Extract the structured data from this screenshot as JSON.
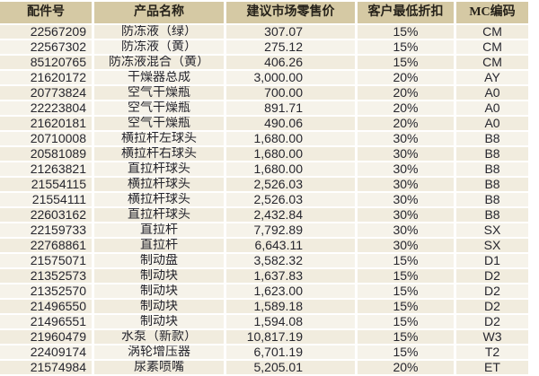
{
  "table": {
    "columns": [
      {
        "key": "part_number",
        "label": "配件号"
      },
      {
        "key": "product_name",
        "label": "产品名称"
      },
      {
        "key": "suggested_retail_price",
        "label": "建议市场零售价"
      },
      {
        "key": "customer_min_discount",
        "label": "客户最低折扣"
      },
      {
        "key": "mc_code",
        "label": "MC编码"
      }
    ],
    "rows": [
      [
        "22567209",
        "防冻液（绿）",
        "307.07",
        "15%",
        "CM"
      ],
      [
        "22567302",
        "防冻液（黄）",
        "275.12",
        "15%",
        "CM"
      ],
      [
        "85120765",
        "防冻液混合（黄）",
        "406.26",
        "15%",
        "CM"
      ],
      [
        "21620172",
        "干燥器总成",
        "3,000.00",
        "20%",
        "AY"
      ],
      [
        "20773824",
        "空气干燥瓶",
        "700.00",
        "20%",
        "A0"
      ],
      [
        "22223804",
        "空气干燥瓶",
        "891.71",
        "20%",
        "A0"
      ],
      [
        "21620181",
        "空气干燥瓶",
        "490.06",
        "20%",
        "A0"
      ],
      [
        "20710008",
        "横拉杆左球头",
        "1,680.00",
        "30%",
        "B8"
      ],
      [
        "20581089",
        "横拉杆右球头",
        "1,680.00",
        "30%",
        "B8"
      ],
      [
        "21263821",
        "直拉杆球头",
        "1,680.00",
        "30%",
        "B8"
      ],
      [
        "21554115",
        "横拉杆球头",
        "2,526.03",
        "30%",
        "B8"
      ],
      [
        "21554111",
        "横拉杆球头",
        "2,526.03",
        "30%",
        "B8"
      ],
      [
        "22603162",
        "直拉杆球头",
        "2,432.84",
        "30%",
        "B8"
      ],
      [
        "22159733",
        "直拉杆",
        "7,792.89",
        "30%",
        "SX"
      ],
      [
        "22768861",
        "直拉杆",
        "6,643.11",
        "30%",
        "SX"
      ],
      [
        "21575071",
        "制动盘",
        "3,582.32",
        "15%",
        "D1"
      ],
      [
        "21352573",
        "制动块",
        "1,637.83",
        "15%",
        "D2"
      ],
      [
        "21352570",
        "制动块",
        "1,623.00",
        "15%",
        "D2"
      ],
      [
        "21496550",
        "制动块",
        "1,589.18",
        "15%",
        "D2"
      ],
      [
        "21496551",
        "制动块",
        "1,594.08",
        "15%",
        "D2"
      ],
      [
        "21960479",
        "水泵（新款）",
        "10,817.19",
        "15%",
        "W3"
      ],
      [
        "22409174",
        "涡轮增压器",
        "6,701.19",
        "15%",
        "T2"
      ],
      [
        "21574984",
        "尿素喷嘴",
        "5,205.01",
        "20%",
        "ET"
      ]
    ]
  },
  "colors": {
    "header_bg": "#d5c9a4",
    "row_odd_bg": "#f1ecde",
    "row_even_bg": "#f6f3ea",
    "text": "#26262e",
    "separator": "#ffffff"
  }
}
